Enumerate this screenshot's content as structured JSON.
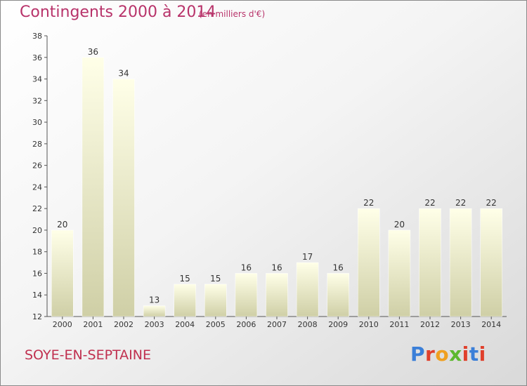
{
  "header": {
    "title": "Contingents 2000 à 2014",
    "subtitle": "(en milliers d'€)"
  },
  "footer": {
    "commune": "SOYE-EN-SEPTAINE",
    "logo_text": "Proxiti",
    "logo_colors": [
      "#3b7fd8",
      "#e0402c",
      "#f0a020",
      "#5cb82e",
      "#e0402c",
      "#3b7fd8",
      "#e0402c"
    ]
  },
  "colors": {
    "title": "#b8336a",
    "bar_top": "#ffffe8",
    "bar_bottom": "#cfcfa6",
    "axis": "#555555"
  },
  "chart_data": {
    "type": "bar",
    "categories": [
      "2000",
      "2001",
      "2002",
      "2003",
      "2004",
      "2005",
      "2006",
      "2007",
      "2008",
      "2009",
      "2010",
      "2011",
      "2012",
      "2013",
      "2014"
    ],
    "values": [
      20,
      36,
      34,
      13,
      15,
      15,
      16,
      16,
      17,
      16,
      22,
      20,
      22,
      22,
      22
    ],
    "ylim": [
      12,
      38
    ],
    "yticks": [
      12,
      14,
      16,
      18,
      20,
      22,
      24,
      26,
      28,
      30,
      32,
      34,
      36,
      38
    ],
    "grid": false,
    "data_labels": true
  }
}
